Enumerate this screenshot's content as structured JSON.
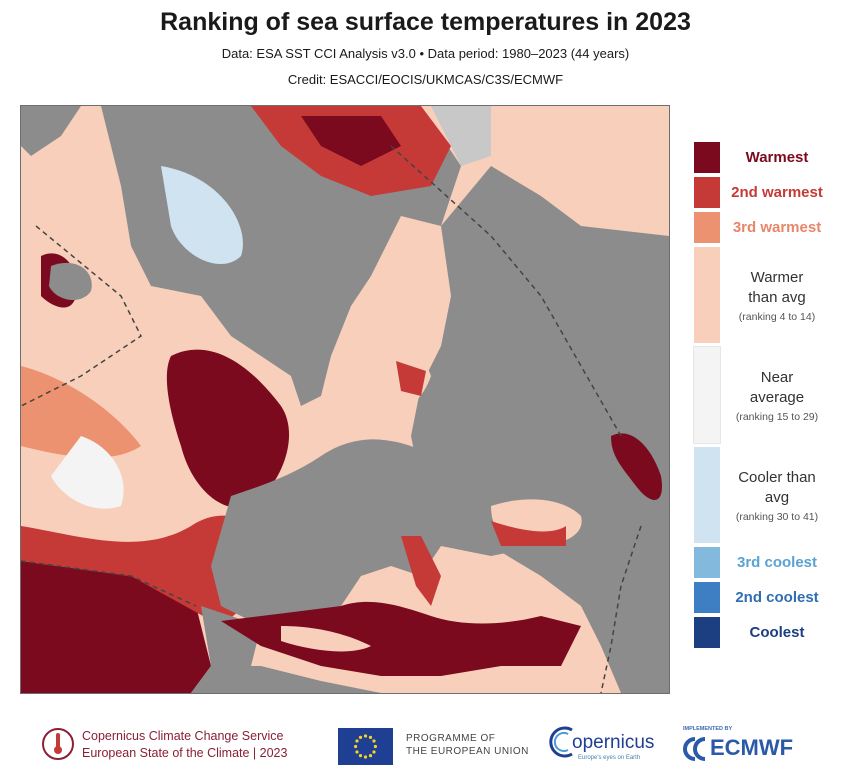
{
  "header": {
    "title": "Ranking of sea surface temperatures in 2023",
    "subtitle": "Data: ESA SST CCI Analysis v3.0 • Data period: 1980–2023 (44 years)",
    "credit": "Credit: ESACCI/EOCIS/UKMCAS/C3S/ECMWF"
  },
  "legend": [
    {
      "name": "Warmest",
      "range": "",
      "color": "#7c0a1e",
      "text_color": "#7c0a1e"
    },
    {
      "name": "2nd warmest",
      "range": "",
      "color": "#c53a37",
      "text_color": "#c53a37"
    },
    {
      "name": "3rd warmest",
      "range": "",
      "color": "#ec9270",
      "text_color": "#e8866a"
    },
    {
      "name": "Warmer than avg",
      "range": "(ranking 4 to 14)",
      "color": "#f8cfbb",
      "text_color": "#333333"
    },
    {
      "name": "Near average",
      "range": "(ranking 15 to 29)",
      "color": "#f4f4f4",
      "text_color": "#333333"
    },
    {
      "name": "Cooler than avg",
      "range": "(ranking 30 to 41)",
      "color": "#cfe3f1",
      "text_color": "#333333"
    },
    {
      "name": "3rd coolest",
      "range": "",
      "color": "#83b9dd",
      "text_color": "#5aa2d4"
    },
    {
      "name": "2nd coolest",
      "range": "",
      "color": "#3d7fc2",
      "text_color": "#2f6db4"
    },
    {
      "name": "Coolest",
      "range": "",
      "color": "#1b3f80",
      "text_color": "#1b3f80"
    }
  ],
  "map": {
    "land_color": "#8c8c8c",
    "ice_color": "#c8c8c8",
    "border_color": "#444444"
  },
  "footer": {
    "c3s_line1": "Copernicus Climate Change Service",
    "c3s_line2": "European State of the Climate | 2023",
    "eu_line1": "PROGRAMME OF",
    "eu_line2": "THE EUROPEAN UNION",
    "copernicus": "opernicus",
    "copernicus_tag": "Europe's eyes on Earth",
    "ecmwf_small": "IMPLEMENTED BY",
    "ecmwf": "ECMWF"
  }
}
